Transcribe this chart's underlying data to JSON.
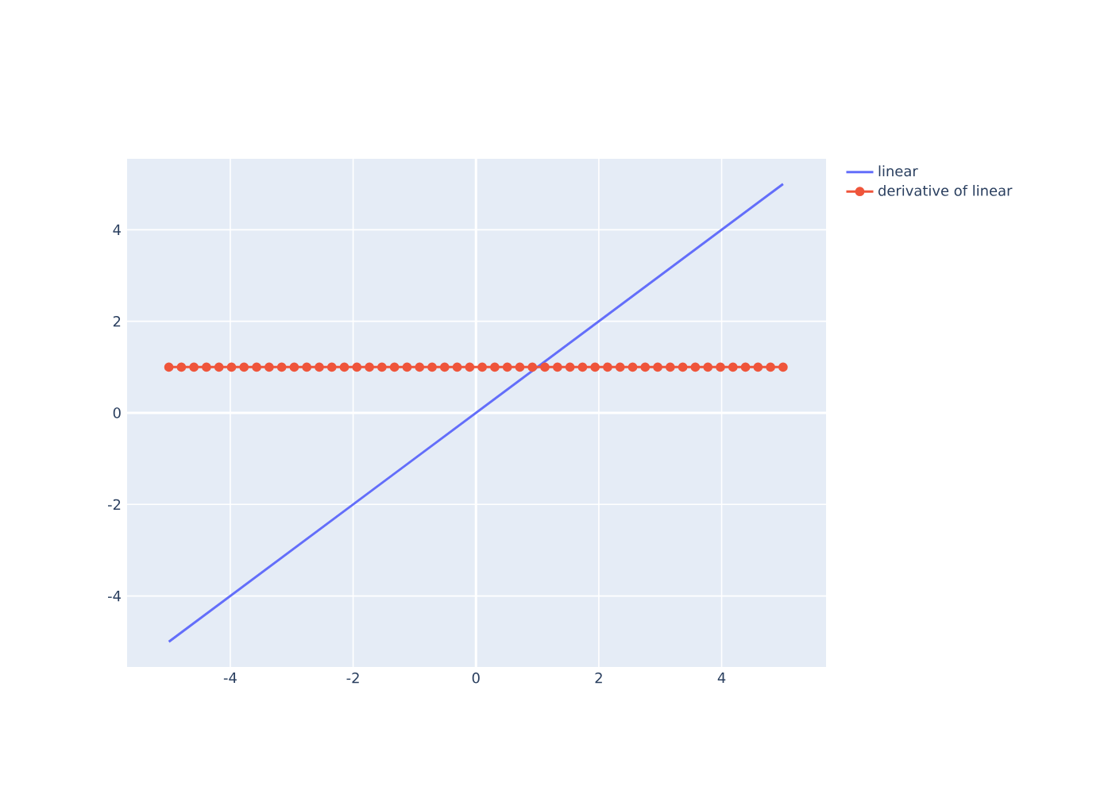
{
  "chart_data": {
    "type": "line",
    "xlim": [
      -5.68,
      5.7
    ],
    "ylim": [
      -5.55,
      5.55
    ],
    "xticks": [
      -4,
      -2,
      0,
      2,
      4
    ],
    "yticks": [
      -4,
      -2,
      0,
      2,
      4
    ],
    "grid": true,
    "legend": "top right",
    "line_style": "solid",
    "series": [
      {
        "name": "linear",
        "color": "#636efa",
        "marker": "none",
        "x": [
          -5,
          5
        ],
        "values": [
          -5,
          5
        ]
      },
      {
        "name": "derivative of linear",
        "color": "#ef553b",
        "marker": "circle",
        "x": [
          -5,
          -4.796,
          -4.592,
          -4.388,
          -4.184,
          -3.98,
          -3.776,
          -3.571,
          -3.367,
          -3.163,
          -2.959,
          -2.755,
          -2.551,
          -2.347,
          -2.143,
          -1.939,
          -1.735,
          -1.531,
          -1.327,
          -1.122,
          -0.918,
          -0.714,
          -0.51,
          -0.306,
          -0.102,
          0.102,
          0.306,
          0.51,
          0.714,
          0.918,
          1.122,
          1.327,
          1.531,
          1.735,
          1.939,
          2.143,
          2.347,
          2.551,
          2.755,
          2.959,
          3.163,
          3.367,
          3.571,
          3.776,
          3.98,
          4.184,
          4.388,
          4.592,
          4.796,
          5
        ],
        "values": [
          1,
          1,
          1,
          1,
          1,
          1,
          1,
          1,
          1,
          1,
          1,
          1,
          1,
          1,
          1,
          1,
          1,
          1,
          1,
          1,
          1,
          1,
          1,
          1,
          1,
          1,
          1,
          1,
          1,
          1,
          1,
          1,
          1,
          1,
          1,
          1,
          1,
          1,
          1,
          1,
          1,
          1,
          1,
          1,
          1,
          1,
          1,
          1,
          1,
          1
        ]
      }
    ]
  }
}
